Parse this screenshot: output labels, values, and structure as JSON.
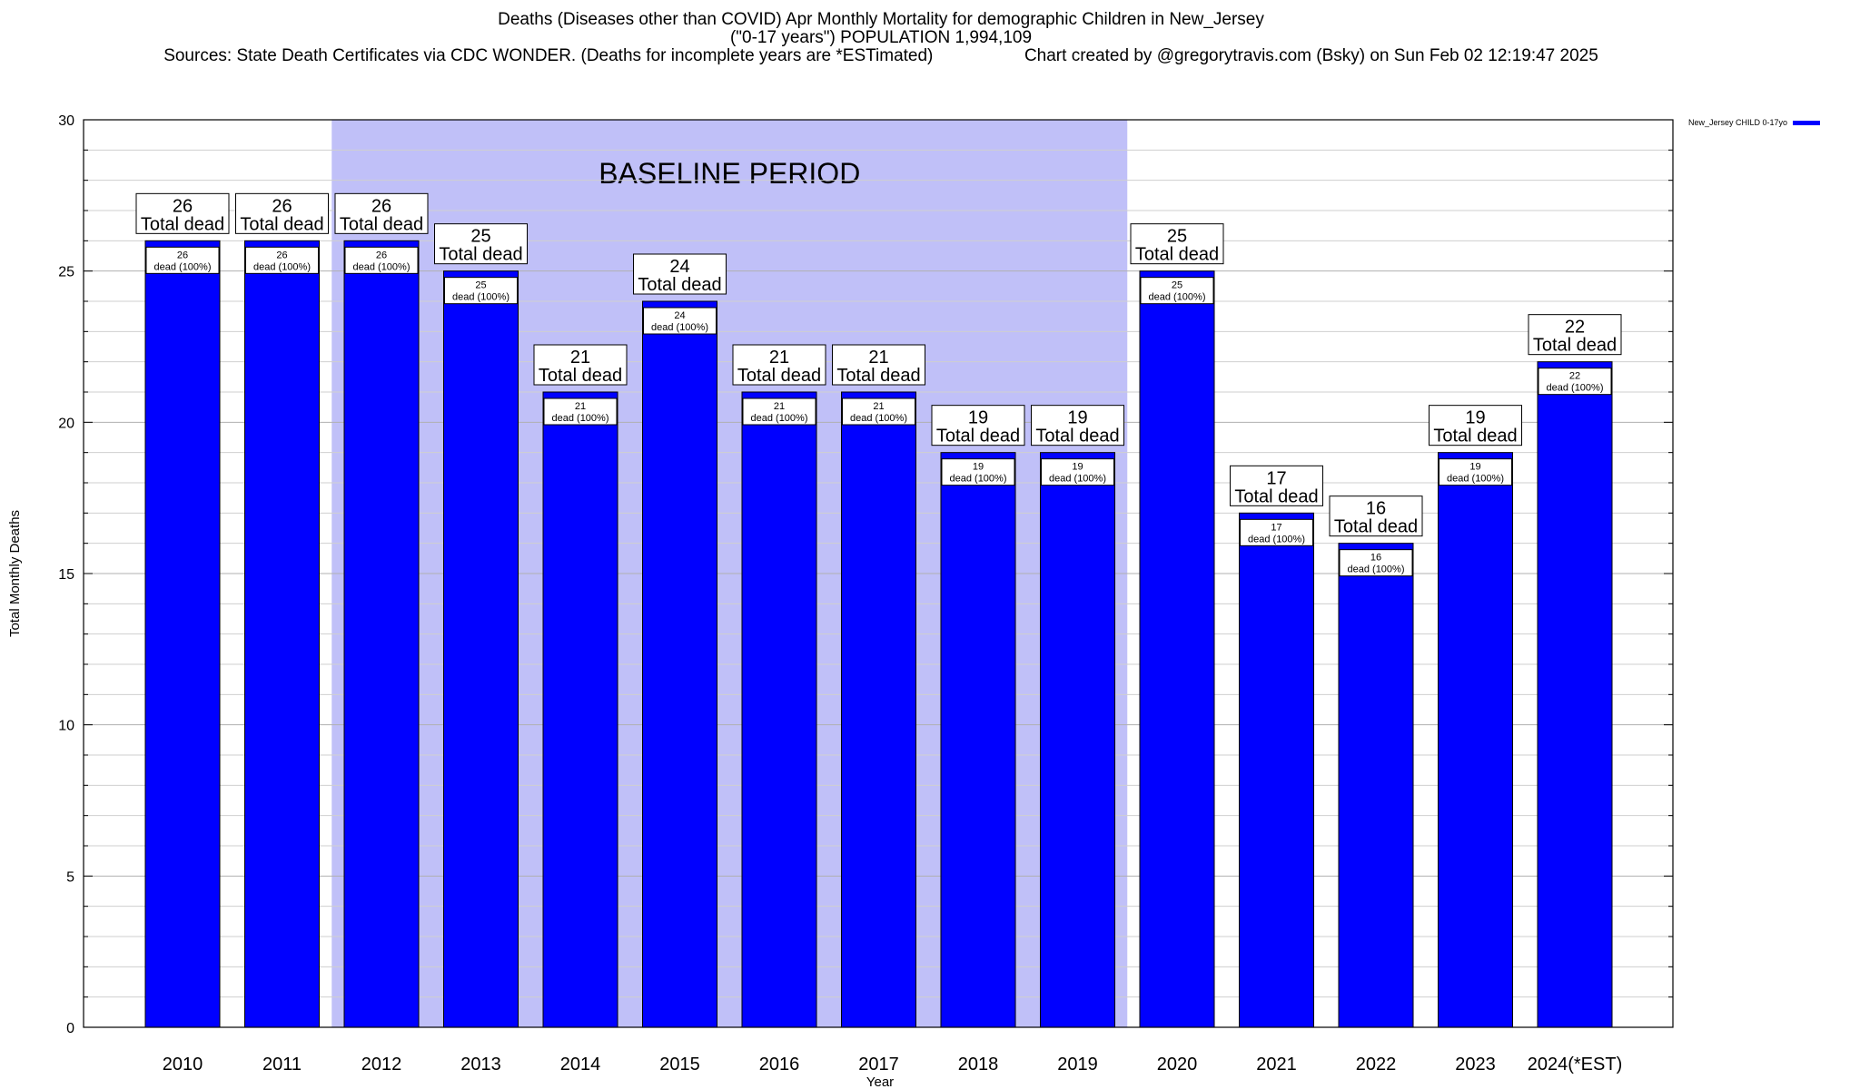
{
  "title": {
    "line1": "Deaths (Diseases other than COVID) Apr Monthly Mortality for demographic Children in New_Jersey",
    "line2": "(\"0-17 years\") POPULATION 1,994,109",
    "sources": "Sources: State Death Certificates via CDC WONDER. (Deaths for incomplete years are *ESTimated)",
    "credit": "Chart created by @gregorytravis.com (Bsky) on Sun Feb 02 12:19:47 2025"
  },
  "legend": {
    "label": "New_Jersey CHILD 0-17yo",
    "color": "#0000ff"
  },
  "chart_data": {
    "type": "bar",
    "categories": [
      "2010",
      "2011",
      "2012",
      "2013",
      "2014",
      "2015",
      "2016",
      "2017",
      "2018",
      "2019",
      "2020",
      "2021",
      "2022",
      "2023",
      "2024(*EST)"
    ],
    "values": [
      26,
      26,
      26,
      25,
      21,
      24,
      21,
      21,
      19,
      19,
      25,
      17,
      16,
      19,
      22
    ],
    "xlabel": "Year",
    "ylabel": "Total Monthly Deaths",
    "ylim": [
      0,
      30
    ],
    "yticks": [
      0,
      5,
      10,
      15,
      20,
      25,
      30
    ],
    "grid": true,
    "bar_color": "#0000ff",
    "baseline": {
      "label": "BASELINE PERIOD",
      "from": "2012",
      "to": "2019",
      "color": "#c0c0f8"
    },
    "total_label_suffix": "Total dead",
    "inner_label_suffix": "dead (100%)"
  }
}
